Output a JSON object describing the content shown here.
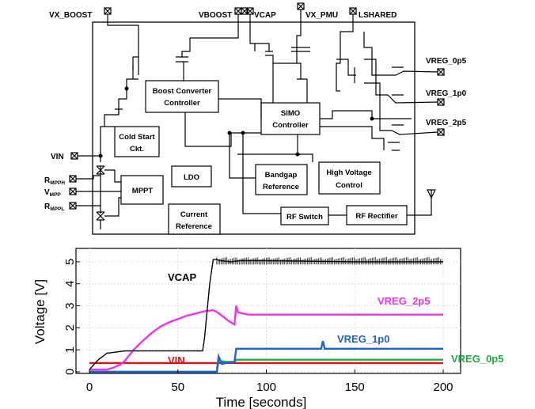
{
  "pins_top": [
    "VX_BOOST",
    "VBOOST",
    "VCAP",
    "VX_PMU",
    "LSHARED"
  ],
  "pins_right": [
    "VREG_0p5",
    "VREG_1p0",
    "VREG_2p5"
  ],
  "pins_left": {
    "vin": "VIN",
    "rmppth": {
      "main": "R",
      "sub": "MPPH"
    },
    "vmpp": {
      "main": "V",
      "sub": "MPP"
    },
    "rmpppl": {
      "main": "R",
      "sub": "MPPL"
    }
  },
  "blocks": {
    "boost_l1": "Boost Converter",
    "boost_l2": "Controller",
    "simo_l1": "SIMO",
    "simo_l2": "Controller",
    "cold_l1": "Cold Start",
    "cold_l2": "Ckt.",
    "mppt": "MPPT",
    "ldo": "LDO",
    "bandgap_l1": "Bandgap",
    "bandgap_l2": "Reference",
    "hv_l1": "High Voltage",
    "hv_l2": "Control",
    "current_l1": "Current",
    "current_l2": "Reference",
    "rfswitch": "RF Switch",
    "rfrect": "RF Rectifier"
  },
  "chart_data": {
    "type": "line",
    "xlabel": "Time [seconds]",
    "ylabel": "Voltage [V]",
    "xlim": [
      0,
      200
    ],
    "ylim": [
      0,
      5.5
    ],
    "xticks": [
      0,
      50,
      100,
      150,
      200
    ],
    "yticks": [
      0,
      1,
      2,
      3,
      4,
      5
    ],
    "grid": true,
    "colors": {
      "VCAP": "#000000",
      "VREG_2p5": "#ee33ee",
      "VREG_1p0": "#2060d0",
      "VREG_0p5": "#22aa44",
      "VIN": "#dd1111"
    },
    "series": [
      {
        "name": "VCAP",
        "x": [
          0,
          5,
          10,
          20,
          30,
          40,
          50,
          60,
          64,
          65,
          68,
          70,
          72,
          74,
          80,
          85,
          90,
          100,
          150,
          200
        ],
        "y": [
          0.1,
          0.55,
          0.85,
          0.95,
          0.95,
          0.95,
          0.95,
          0.95,
          0.95,
          1.5,
          4.0,
          5.1,
          5.1,
          5.05,
          5.0,
          5.05,
          5.05,
          5.05,
          5.0,
          5.0
        ]
      },
      {
        "name": "VREG_2p5",
        "x": [
          0,
          10,
          14,
          18,
          20,
          22,
          25,
          30,
          35,
          40,
          45,
          50,
          55,
          60,
          65,
          70,
          72,
          75,
          78,
          82,
          83,
          84,
          90,
          100,
          150,
          200
        ],
        "y": [
          0.1,
          0.1,
          0.2,
          0.35,
          0.5,
          0.7,
          1.0,
          1.4,
          1.75,
          2.05,
          2.25,
          2.4,
          2.55,
          2.65,
          2.75,
          2.8,
          2.72,
          2.55,
          2.35,
          2.15,
          3.0,
          2.7,
          2.6,
          2.6,
          2.6,
          2.6
        ]
      },
      {
        "name": "VREG_1p0",
        "x": [
          0,
          72,
          73,
          75,
          77,
          82,
          83,
          84,
          100,
          131,
          132,
          133,
          150,
          200
        ],
        "y": [
          0.0,
          0.0,
          0.7,
          0.35,
          0.4,
          0.45,
          1.05,
          1.05,
          1.05,
          1.05,
          1.4,
          1.05,
          1.05,
          1.05
        ]
      },
      {
        "name": "VREG_0p5",
        "x": [
          0,
          72,
          73,
          78,
          82,
          83,
          100,
          150,
          200
        ],
        "y": [
          0.0,
          0.0,
          0.5,
          0.45,
          0.45,
          0.55,
          0.55,
          0.55,
          0.55
        ]
      },
      {
        "name": "VIN",
        "x": [
          0,
          50,
          100,
          150,
          200
        ],
        "y": [
          0.4,
          0.4,
          0.4,
          0.4,
          0.4
        ]
      }
    ],
    "annotations": [
      "VCAP",
      "VREG_2p5",
      "VREG_1p0",
      "VREG_0p5",
      "VIN"
    ]
  }
}
